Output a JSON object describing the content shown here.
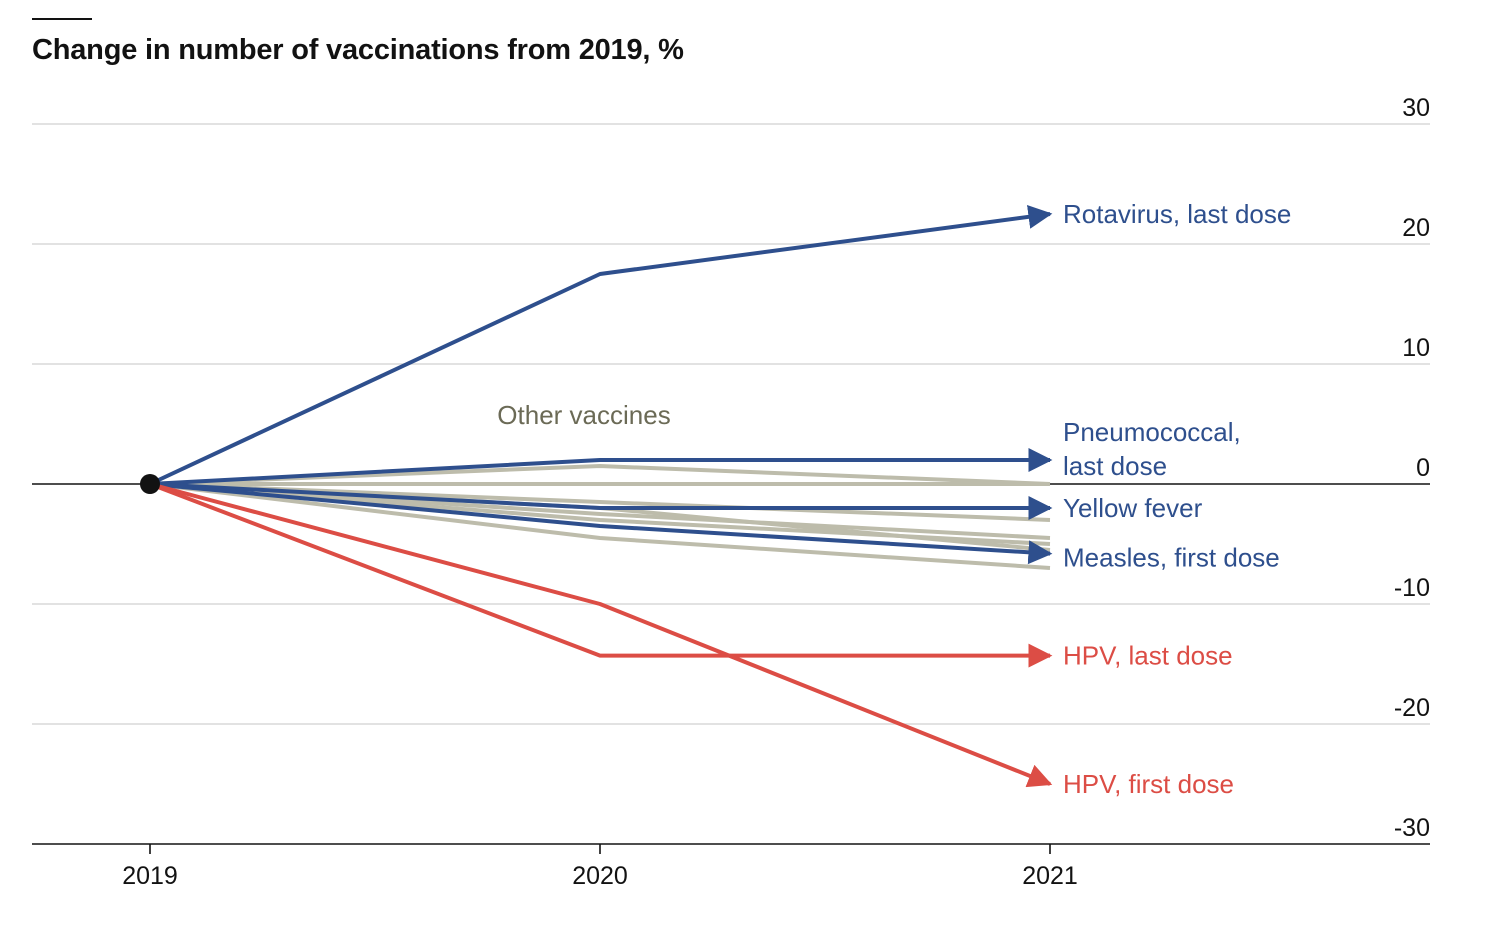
{
  "chart_data": {
    "type": "line",
    "title": "Change in number of vaccinations from 2019, %",
    "x": [
      "2019",
      "2020",
      "2021"
    ],
    "ylim": [
      -30,
      30
    ],
    "yticks": [
      30,
      20,
      10,
      0,
      -10,
      -20,
      -30
    ],
    "ytick_labels": [
      "30",
      "20",
      "10",
      "0",
      "-10",
      "-20",
      "-30"
    ],
    "grid": true,
    "colors": {
      "blue": "#2e4f8d",
      "red": "#dc4d45",
      "gray": "#bdbcab",
      "annotation": "#6b6a56",
      "axis": "#121212",
      "grid": "#d9d9d9"
    },
    "annotation": "Other vaccines",
    "background_series": [
      {
        "values": [
          0,
          1.5,
          0
        ]
      },
      {
        "values": [
          0,
          0,
          0
        ]
      },
      {
        "values": [
          0,
          -1.5,
          -3
        ]
      },
      {
        "values": [
          0,
          -2.5,
          -4.5
        ]
      },
      {
        "values": [
          0,
          -3,
          -5
        ]
      },
      {
        "values": [
          0,
          -2,
          -5.5
        ]
      },
      {
        "values": [
          0,
          -4.5,
          -7
        ]
      }
    ],
    "series": [
      {
        "name": "Rotavirus, last dose",
        "label_lines": [
          "Rotavirus, last dose"
        ],
        "values": [
          0,
          17.5,
          22.5
        ],
        "color": "blue"
      },
      {
        "name": "Pneumococcal, last dose",
        "label_lines": [
          "Pneumococcal,",
          "last dose"
        ],
        "values": [
          0,
          2,
          2
        ],
        "color": "blue"
      },
      {
        "name": "Yellow fever",
        "label_lines": [
          "Yellow fever"
        ],
        "values": [
          0,
          -2,
          -2
        ],
        "color": "blue"
      },
      {
        "name": "Measles, first dose",
        "label_lines": [
          "Measles, first dose"
        ],
        "values": [
          0,
          -3.5,
          -5.8
        ],
        "color": "blue"
      },
      {
        "name": "HPV, last dose",
        "label_lines": [
          "HPV, last dose"
        ],
        "values": [
          0,
          -14.3,
          -14.3
        ],
        "color": "red"
      },
      {
        "name": "HPV, first dose",
        "label_lines": [
          "HPV, first dose"
        ],
        "values": [
          0,
          -10,
          -25
        ],
        "color": "red"
      }
    ]
  }
}
